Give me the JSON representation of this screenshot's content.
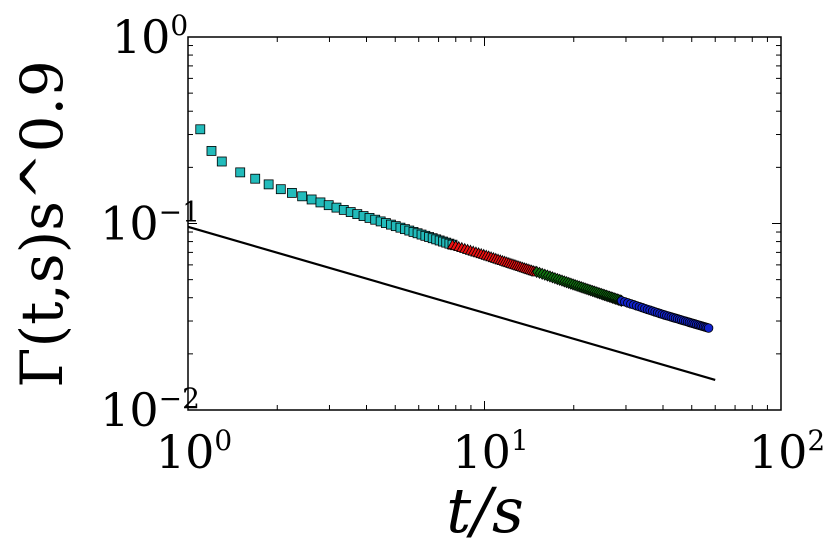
{
  "chart_data": {
    "type": "scatter",
    "xlabel": "t/s",
    "ylabel": "Γ(t,s)s^0.9",
    "xscale": "log",
    "yscale": "log",
    "xlim": [
      1,
      100
    ],
    "ylim": [
      0.01,
      1
    ],
    "grid": false,
    "x_ticks": [
      {
        "value": 1,
        "base": "10",
        "exp": "0"
      },
      {
        "value": 10,
        "base": "10",
        "exp": "1"
      },
      {
        "value": 100,
        "base": "10",
        "exp": "2"
      }
    ],
    "y_ticks": [
      {
        "value": 0.01,
        "base": "10",
        "exp": "−2"
      },
      {
        "value": 0.1,
        "base": "10",
        "exp": "−1"
      },
      {
        "value": 1,
        "base": "10",
        "exp": "0"
      }
    ],
    "series": [
      {
        "marker": "square",
        "color": "#22bbbb",
        "x_range": [
          1.1,
          7.8
        ],
        "count": 38,
        "anchors": [
          [
            1.1,
            0.32
          ],
          [
            1.2,
            0.245
          ],
          [
            1.3,
            0.215
          ],
          [
            1.5,
            0.188
          ],
          [
            2.0,
            0.155
          ],
          [
            3.0,
            0.125
          ],
          [
            5.0,
            0.097
          ],
          [
            7.8,
            0.077
          ]
        ]
      },
      {
        "marker": "triangle",
        "color": "#ee1111",
        "x_range": [
          7.8,
          15
        ],
        "count": 38,
        "anchors": [
          [
            7.8,
            0.077
          ],
          [
            10,
            0.068
          ],
          [
            15,
            0.055
          ]
        ]
      },
      {
        "marker": "diamond",
        "color": "#117711",
        "x_range": [
          15,
          29
        ],
        "count": 44,
        "anchors": [
          [
            15,
            0.055
          ],
          [
            20,
            0.047
          ],
          [
            29,
            0.0385
          ]
        ]
      },
      {
        "marker": "circle",
        "color": "#1122cc",
        "x_range": [
          29,
          57
        ],
        "count": 40,
        "anchors": [
          [
            29,
            0.0385
          ],
          [
            40,
            0.0325
          ],
          [
            57,
            0.0275
          ]
        ]
      },
      {
        "marker": "line",
        "color": "#000000",
        "x": [
          1,
          60
        ],
        "y": [
          0.096,
          0.0145
        ]
      }
    ]
  }
}
